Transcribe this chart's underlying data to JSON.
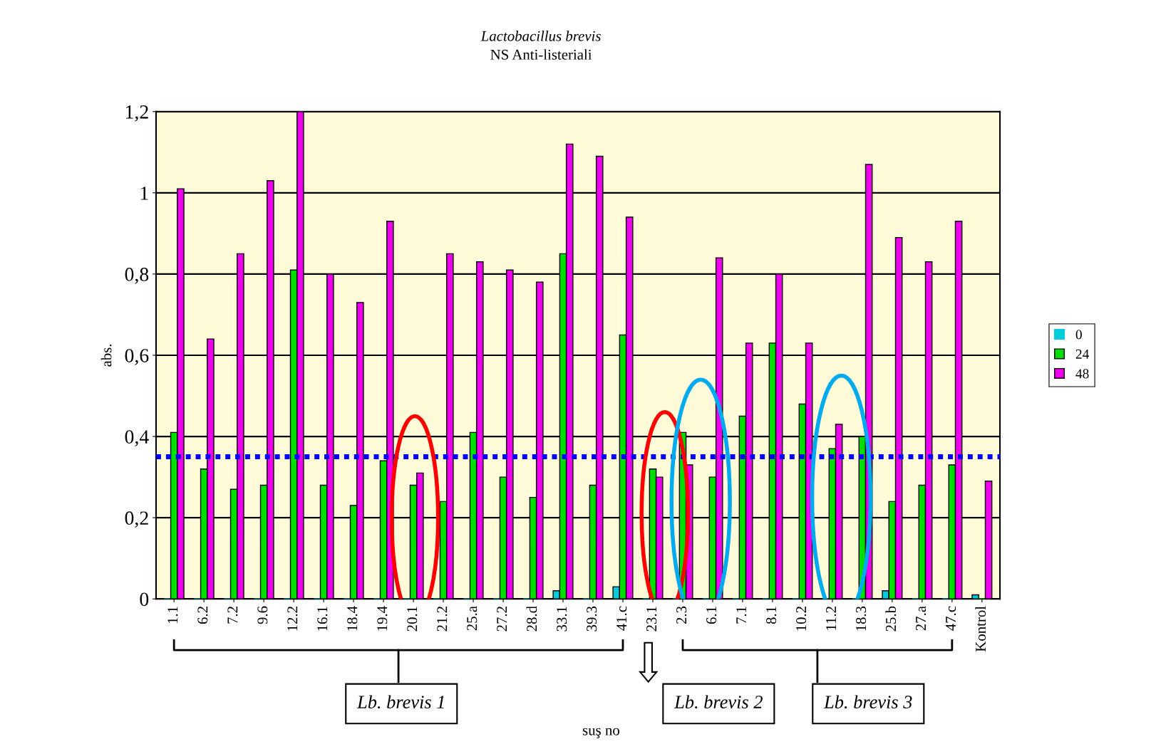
{
  "chart_data": {
    "type": "bar",
    "title": "Lactobacillus brevis",
    "subtitle": "NS Anti-listeriali",
    "ylabel": "abs.",
    "categories": [
      "1.1",
      "6.2",
      "7.2",
      "9.6",
      "12.2",
      "16.1",
      "18.4",
      "19.4",
      "20.1",
      "21.2",
      "25.a",
      "27.2",
      "28.d",
      "33.1",
      "39.3",
      "41.c",
      "23.1",
      "2.3",
      "6.1",
      "7.1",
      "8.1",
      "10.2",
      "11.2",
      "18.3",
      "25.b",
      "27.a",
      "47.c",
      "Kontrol"
    ],
    "series": [
      {
        "name": "0",
        "color": "#00ccdd",
        "values": [
          0,
          0,
          0,
          0,
          0,
          0,
          0,
          0,
          0,
          0,
          0,
          0,
          0,
          0.02,
          0,
          0.03,
          0,
          0,
          0,
          0,
          0,
          0,
          0,
          0,
          0.02,
          0,
          0,
          0.01
        ]
      },
      {
        "name": "24",
        "color": "#00dd00",
        "values": [
          0.41,
          0.32,
          0.27,
          0.28,
          0.81,
          0.28,
          0.23,
          0.34,
          0.28,
          0.24,
          0.41,
          0.3,
          0.25,
          0.85,
          0.28,
          0.65,
          0.32,
          0.41,
          0.3,
          0.45,
          0.63,
          0.48,
          0.37,
          0.4,
          0.24,
          0.28,
          0.33,
          0
        ]
      },
      {
        "name": "48",
        "color": "#ee00ee",
        "values": [
          1.01,
          0.64,
          0.85,
          1.03,
          1.2,
          0.8,
          0.73,
          0.93,
          0.31,
          0.85,
          0.83,
          0.81,
          0.78,
          1.12,
          1.09,
          0.94,
          0.3,
          0.33,
          0.84,
          0.63,
          0.8,
          0.63,
          0.43,
          1.07,
          0.89,
          0.83,
          0.93,
          0.29
        ]
      }
    ],
    "ylim": [
      0,
      1.2
    ],
    "yticks": [
      0,
      {
        "value": 0.2,
        "label": "0,2"
      },
      {
        "value": 0.4,
        "label": "0,4"
      },
      {
        "value": 0.6,
        "label": "0,6"
      },
      {
        "value": 0.8,
        "label": "0,8"
      },
      1,
      {
        "value": 1.2,
        "label": "1,2"
      }
    ],
    "grid": "y",
    "legend": "right",
    "ref_lines": [
      {
        "axis": "y",
        "value": 0.35,
        "color": "#0000ff",
        "line_style": "dotted"
      }
    ],
    "annotations": [
      "Lb. brevis 1",
      "Lb. brevis 2",
      "Lb. brevis 3",
      "suş no"
    ]
  }
}
